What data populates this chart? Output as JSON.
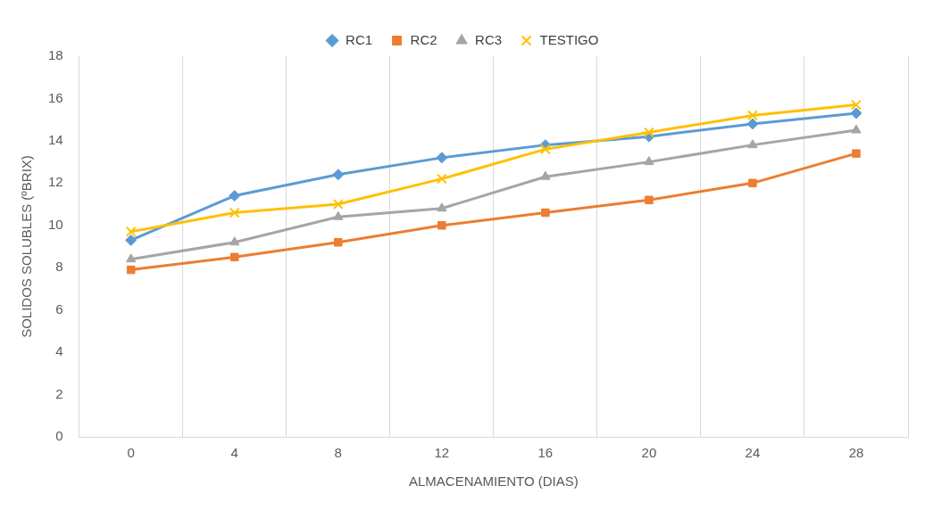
{
  "chart_data": {
    "type": "line",
    "xlabel": "ALMACENAMIENTO (DIAS)",
    "ylabel": "SOLIDOS SOLUBLES (ºBRIX)",
    "categories": [
      "0",
      "4",
      "8",
      "12",
      "16",
      "20",
      "24",
      "28"
    ],
    "series": [
      {
        "name": "RC1",
        "color": "#5b9bd5",
        "marker": "diamond",
        "values": [
          9.3,
          11.4,
          12.4,
          13.2,
          13.8,
          14.2,
          14.8,
          15.3
        ]
      },
      {
        "name": "RC2",
        "color": "#ed7d31",
        "marker": "square",
        "values": [
          7.9,
          8.5,
          9.2,
          10.0,
          10.6,
          11.2,
          12.0,
          13.4
        ]
      },
      {
        "name": "RC3",
        "color": "#a5a5a5",
        "marker": "triangle",
        "values": [
          8.4,
          9.2,
          10.4,
          10.8,
          12.3,
          13.0,
          13.8,
          14.5
        ]
      },
      {
        "name": "TESTIGO",
        "color": "#ffc000",
        "marker": "cross",
        "values": [
          9.7,
          10.6,
          11.0,
          12.2,
          13.6,
          14.4,
          15.2,
          15.7
        ]
      }
    ],
    "ylim": [
      0,
      18
    ],
    "yticks": [
      0,
      2,
      4,
      6,
      8,
      10,
      12,
      14,
      16,
      18
    ],
    "grid": "x",
    "legend": "top"
  }
}
